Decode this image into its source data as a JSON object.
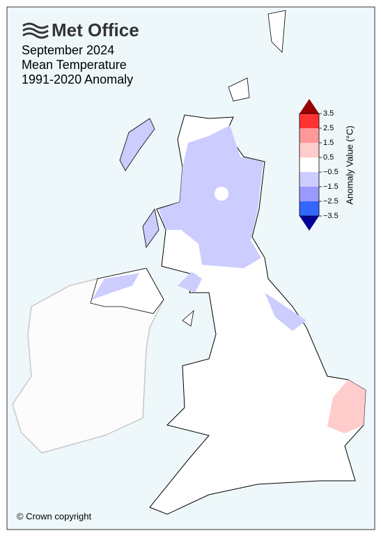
{
  "header": {
    "logo": "Met Office",
    "title_lines": [
      "September 2024",
      "Mean Temperature",
      "1991-2020 Anomaly"
    ]
  },
  "colorbar": {
    "label": "Anomaly Value (°C)",
    "ticks": [
      3.5,
      2.5,
      1.5,
      0.5,
      {
        "value": -0.5,
        "label": "−0.5"
      },
      {
        "value": -1.5,
        "label": "−1.5"
      },
      {
        "value": -2.5,
        "label": "−2.5"
      },
      {
        "value": -3.5,
        "label": "−3.5"
      }
    ],
    "colors": [
      "#ff3333",
      "#ff9999",
      "#ffcccc",
      "#ffffff",
      "#ccccff",
      "#9999ff",
      "#3366ff"
    ],
    "extend_colors": [
      "#990000",
      "#000099"
    ]
  },
  "footer": {
    "copyright": "© Crown copyright"
  }
}
